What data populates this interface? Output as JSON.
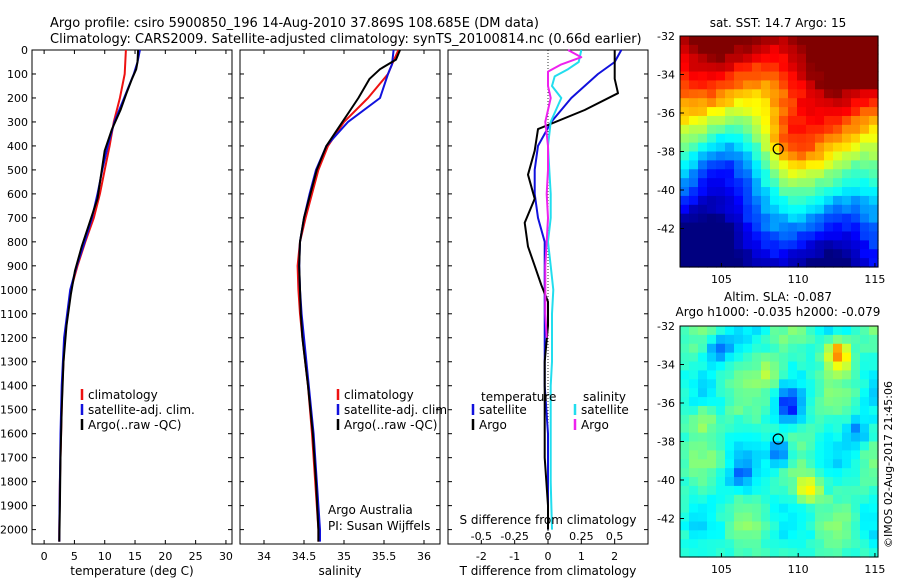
{
  "title_line1": "Argo profile: csiro 5900850_196 14-Aug-2010 37.869S 108.685E (DM data)",
  "title_line2": "Climatology: CARS2009. Satellite-adjusted climatology: synTS_20100814.nc (0.66d earlier)",
  "colors": {
    "climatology": "#ee1111",
    "satellite": "#1111dd",
    "argo": "#000000",
    "salinity_satellite": "#22ddee",
    "salinity_argo": "#ee22ee"
  },
  "chart_data": [
    {
      "type": "line",
      "xlabel": "temperature (deg C)",
      "xlim": [
        -2,
        31
      ],
      "ylim": [
        0,
        2060
      ],
      "y_reversed": true,
      "xticks": [
        0,
        5,
        10,
        15,
        20,
        25,
        30
      ],
      "yticks": [
        0,
        100,
        200,
        300,
        400,
        500,
        600,
        700,
        800,
        900,
        1000,
        1100,
        1200,
        1300,
        1400,
        1500,
        1600,
        1700,
        1800,
        1900,
        2000
      ],
      "legend": [
        "climatology",
        "satellite-adj. clim.",
        "Argo(..raw -QC)"
      ],
      "series": [
        {
          "name": "climatology",
          "color_key": "climatology",
          "y": [
            0,
            50,
            100,
            200,
            300,
            400,
            500,
            600,
            700,
            800,
            900,
            1000,
            1200,
            1400,
            1600,
            1800,
            2000,
            2050
          ],
          "x": [
            13.5,
            13.4,
            13.3,
            12.5,
            11.5,
            10.8,
            10.0,
            9.2,
            8.2,
            6.8,
            5.5,
            4.4,
            3.4,
            3.0,
            2.8,
            2.6,
            2.5,
            2.5
          ]
        },
        {
          "name": "satellite-adj. clim.",
          "color_key": "satellite",
          "y": [
            0,
            50,
            100,
            200,
            300,
            400,
            500,
            600,
            700,
            800,
            900,
            1000,
            1200,
            1400,
            1600,
            1800,
            2000,
            2050
          ],
          "x": [
            15.8,
            15.4,
            14.8,
            13.2,
            11.6,
            10.5,
            9.6,
            8.8,
            7.9,
            6.7,
            5.4,
            4.3,
            3.3,
            2.9,
            2.7,
            2.6,
            2.5,
            2.5
          ]
        },
        {
          "name": "Argo(..raw -QC)",
          "color_key": "argo",
          "y": [
            0,
            50,
            80,
            120,
            180,
            250,
            330,
            420,
            520,
            620,
            720,
            820,
            920,
            1020,
            1150,
            1300,
            1500,
            1700,
            1900,
            2050
          ],
          "x": [
            15.5,
            15.4,
            15.2,
            14.5,
            13.6,
            12.6,
            11.2,
            10.0,
            9.4,
            8.8,
            7.5,
            6.2,
            5.1,
            4.4,
            3.7,
            3.2,
            2.9,
            2.7,
            2.6,
            2.5
          ]
        }
      ]
    },
    {
      "type": "line",
      "xlabel": "salinity",
      "xlim": [
        33.7,
        36.2
      ],
      "ylim": [
        0,
        2060
      ],
      "y_reversed": true,
      "xticks": [
        34,
        34.5,
        35,
        35.5,
        36
      ],
      "legend": [
        "climatology",
        "satellite-adj. clim.",
        "Argo(..raw -QC)"
      ],
      "annotations": [
        "Argo Australia",
        "PI: Susan Wijffels"
      ],
      "series": [
        {
          "name": "climatology",
          "color_key": "climatology",
          "y": [
            0,
            60,
            100,
            200,
            300,
            400,
            500,
            600,
            700,
            800,
            900,
            1000,
            1100,
            1200,
            1400,
            1600,
            1800,
            2000,
            2050
          ],
          "x": [
            35.68,
            35.6,
            35.55,
            35.3,
            35.0,
            34.8,
            34.68,
            34.6,
            34.52,
            34.45,
            34.42,
            34.43,
            34.45,
            34.48,
            34.55,
            34.6,
            34.64,
            34.68,
            34.68
          ]
        },
        {
          "name": "satellite-adj. clim.",
          "color_key": "satellite",
          "y": [
            0,
            60,
            100,
            200,
            300,
            400,
            500,
            600,
            700,
            800,
            900,
            1000,
            1100,
            1200,
            1400,
            1600,
            1800,
            2000,
            2050
          ],
          "x": [
            35.62,
            35.6,
            35.55,
            35.45,
            35.05,
            34.78,
            34.65,
            34.57,
            34.5,
            34.45,
            34.44,
            34.45,
            34.47,
            34.5,
            34.56,
            34.62,
            34.66,
            34.7,
            34.7
          ]
        },
        {
          "name": "Argo(..raw -QC)",
          "color_key": "argo",
          "y": [
            0,
            40,
            80,
            120,
            160,
            200,
            250,
            300,
            350,
            400,
            500,
            600,
            700,
            800,
            900,
            1000,
            1100,
            1200,
            1400,
            1600,
            1800,
            2000,
            2050
          ],
          "x": [
            35.7,
            35.65,
            35.45,
            35.32,
            35.25,
            35.18,
            35.08,
            34.98,
            34.88,
            34.78,
            34.66,
            34.58,
            34.5,
            34.45,
            34.44,
            34.45,
            34.46,
            34.48,
            34.55,
            34.61,
            34.65,
            34.68,
            34.68
          ]
        }
      ]
    },
    {
      "type": "line",
      "xlabel": "T difference from climatology",
      "top_axis_label": "S difference from climatology",
      "xlim": [
        -3,
        3
      ],
      "ylim": [
        0,
        2060
      ],
      "y_reversed": true,
      "xticks": [
        -2,
        -1,
        0,
        1,
        2
      ],
      "top_ticks": [
        "-0.5",
        "-0.25",
        "0",
        "0.25",
        "0.5"
      ],
      "top_tick_values": [
        -0.5,
        -0.25,
        0,
        0.25,
        0.5
      ],
      "legend_temperature_title": "temperature",
      "legend_salinity_title": "salinity",
      "legend_temperature": [
        "satellite",
        "Argo"
      ],
      "legend_salinity": [
        "satellite",
        "Argo"
      ],
      "series": [
        {
          "name": "satellite",
          "group": "temperature",
          "color_key": "satellite",
          "y": [
            0,
            50,
            100,
            200,
            300,
            400,
            500,
            600,
            700,
            800,
            900,
            1000,
            1100,
            1200,
            1300,
            1400,
            1600,
            1800,
            2000
          ],
          "x": [
            2.2,
            2.0,
            1.5,
            0.7,
            0.1,
            -0.3,
            -0.4,
            -0.4,
            -0.3,
            -0.1,
            -0.1,
            -0.1,
            -0.1,
            -0.1,
            -0.1,
            -0.1,
            0,
            0,
            0
          ]
        },
        {
          "name": "Argo",
          "group": "temperature",
          "color_key": "argo",
          "y": [
            0,
            50,
            80,
            120,
            180,
            250,
            330,
            420,
            520,
            620,
            720,
            820,
            900,
            980,
            1050,
            1150,
            1300,
            1500,
            1700,
            1900,
            2000
          ],
          "x": [
            2.0,
            2.0,
            2.0,
            2.0,
            2.1,
            1.1,
            -0.3,
            -0.4,
            -0.6,
            -0.4,
            -0.7,
            -0.6,
            -0.4,
            -0.2,
            0,
            0,
            -0.1,
            -0.1,
            -0.1,
            0,
            0
          ]
        },
        {
          "name": "satellite",
          "group": "salinity",
          "color_key": "salinity_satellite",
          "y": [
            0,
            50,
            80,
            110,
            150,
            200,
            300,
            400,
            500,
            600,
            700,
            800,
            900,
            1000,
            1100,
            1200,
            1300,
            1400,
            1600,
            1800,
            2000
          ],
          "x": [
            0.25,
            0.23,
            0.15,
            0.05,
            0.03,
            0.1,
            0.02,
            0,
            0.01,
            0.02,
            0.02,
            0.0,
            0.02,
            0.04,
            0.03,
            0.03,
            0.03,
            0.02,
            0.02,
            0.02,
            0.03
          ]
        },
        {
          "name": "Argo",
          "group": "salinity",
          "color_key": "salinity_argo",
          "y": [
            0,
            30,
            60,
            90,
            120,
            150,
            200,
            250,
            300,
            350,
            400,
            500,
            600,
            700,
            800,
            900,
            1000,
            1100,
            1200
          ],
          "x": [
            0.15,
            0.25,
            0.1,
            0.0,
            0.0,
            0.0,
            0.02,
            0.0,
            -0.02,
            -0.01,
            0.0,
            0.0,
            -0.01,
            0.0,
            -0.01,
            -0.02,
            -0.02,
            -0.02,
            -0.01
          ]
        }
      ]
    },
    {
      "type": "heatmap",
      "title": "sat. SST: 14.7  Argo: 15",
      "xlim": [
        102.3,
        115.2
      ],
      "ylim": [
        -44,
        -32
      ],
      "xticks": [
        105,
        110,
        115
      ],
      "yticks": [
        -32,
        -34,
        -36,
        -38,
        -40,
        -42
      ],
      "marker": {
        "lon": 108.7,
        "lat": -37.87
      }
    },
    {
      "type": "heatmap",
      "title_line1": "Altim. SLA: -0.087",
      "title_line2": "Argo h1000: -0.035 h2000: -0.079",
      "xlim": [
        102.3,
        115.2
      ],
      "ylim": [
        -44,
        -32
      ],
      "xticks": [
        105,
        110,
        115
      ],
      "yticks": [
        -32,
        -34,
        -36,
        -38,
        -40,
        -42
      ],
      "marker": {
        "lon": 108.7,
        "lat": -37.87
      }
    }
  ],
  "footer": "©IMOS 02-Aug-2017 21:45:06"
}
